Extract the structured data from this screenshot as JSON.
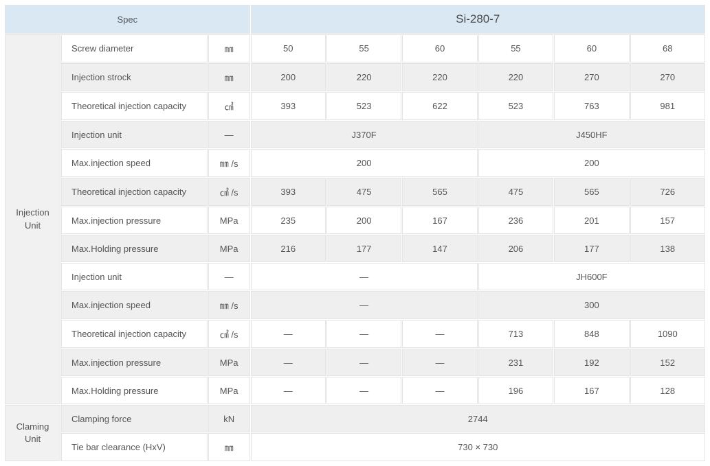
{
  "header": {
    "spec_label": "Spec",
    "model": "Si-280-7"
  },
  "group_labels": {
    "injection": "Injection\nUnit",
    "clamping": "Claming\nUnit"
  },
  "layout": {
    "group_col_width_pct": 8,
    "label_col_width_pct": 21,
    "unit_col_width_pct": 6,
    "data_col_width_pct": 10.8
  },
  "colors": {
    "header_bg": "#d9e8f3",
    "group_bg": "#f1f1f1",
    "alt_row_bg": "#efefef",
    "border": "#e4e4e4",
    "text": "#555555",
    "background": "#ffffff"
  },
  "dash": "—",
  "rows": [
    {
      "label": "Screw diameter",
      "unit": "㎜",
      "cells": [
        "50",
        "55",
        "60",
        "55",
        "60",
        "68"
      ],
      "alt": false
    },
    {
      "label": "Injection strock",
      "unit": "㎜",
      "cells": [
        "200",
        "220",
        "220",
        "220",
        "270",
        "270"
      ],
      "alt": true
    },
    {
      "label": "Theoretical injection capacity",
      "unit": "㎤",
      "cells": [
        "393",
        "523",
        "622",
        "523",
        "763",
        "981"
      ],
      "alt": false
    },
    {
      "label": "Injection unit",
      "unit": "—",
      "spans": [
        {
          "text": "J370F",
          "colspan": 3
        },
        {
          "text": "J450HF",
          "colspan": 3
        }
      ],
      "alt": true
    },
    {
      "label": "Max.injection speed",
      "unit": "㎜ /s",
      "spans": [
        {
          "text": "200",
          "colspan": 3
        },
        {
          "text": "200",
          "colspan": 3
        }
      ],
      "alt": false
    },
    {
      "label": "Theoretical injection capacity",
      "unit": "㎤ /s",
      "cells": [
        "393",
        "475",
        "565",
        "475",
        "565",
        "726"
      ],
      "alt": true
    },
    {
      "label": "Max.injection pressure",
      "unit": "MPa",
      "cells": [
        "235",
        "200",
        "167",
        "236",
        "201",
        "157"
      ],
      "alt": false
    },
    {
      "label": "Max.Holding pressure",
      "unit": "MPa",
      "cells": [
        "216",
        "177",
        "147",
        "206",
        "177",
        "138"
      ],
      "alt": true
    },
    {
      "label": "Injection unit",
      "unit": "—",
      "spans": [
        {
          "text": "—",
          "colspan": 3
        },
        {
          "text": "JH600F",
          "colspan": 3
        }
      ],
      "alt": false
    },
    {
      "label": "Max.injection speed",
      "unit": "㎜ /s",
      "spans": [
        {
          "text": "—",
          "colspan": 3
        },
        {
          "text": "300",
          "colspan": 3
        }
      ],
      "alt": true
    },
    {
      "label": "Theoretical injection capacity",
      "unit": "㎤ /s",
      "cells": [
        "—",
        "—",
        "—",
        "713",
        "848",
        "1090"
      ],
      "alt": false
    },
    {
      "label": "Max.injection pressure",
      "unit": "MPa",
      "cells": [
        "—",
        "—",
        "—",
        "231",
        "192",
        "152"
      ],
      "alt": true
    },
    {
      "label": "Max.Holding pressure",
      "unit": "MPa",
      "cells": [
        "—",
        "—",
        "—",
        "196",
        "167",
        "128"
      ],
      "alt": false
    }
  ],
  "clamping_rows": [
    {
      "label": "Clamping force",
      "unit": "kN",
      "spans": [
        {
          "text": "2744",
          "colspan": 6
        }
      ],
      "alt": true
    },
    {
      "label": "Tie bar clearance (HxV)",
      "unit": "㎜",
      "spans": [
        {
          "text": "730 × 730",
          "colspan": 6
        }
      ],
      "alt": false
    }
  ]
}
